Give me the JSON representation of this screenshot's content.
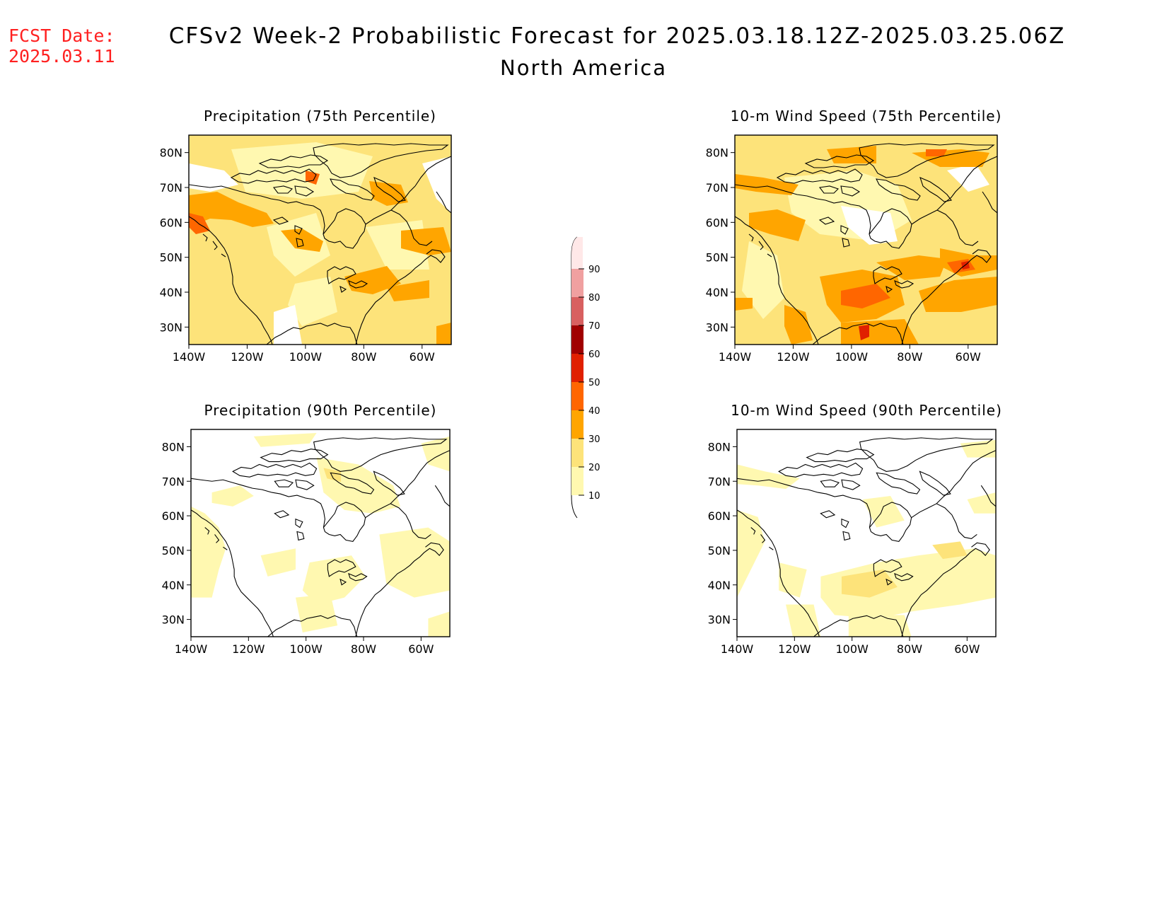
{
  "header": {
    "fcst_label": "FCST Date:",
    "fcst_date": "2025.03.11",
    "title": "CFSv2 Week-2 Probabilistic Forecast for 2025.03.18.12Z-2025.03.25.06Z",
    "subtitle": "North America"
  },
  "colorbar": {
    "levels": [
      "10",
      "20",
      "30",
      "40",
      "50",
      "60",
      "70",
      "80",
      "90"
    ],
    "colors": [
      "#fff8b0",
      "#fde37a",
      "#ffa500",
      "#ff6600",
      "#e02000",
      "#a00000",
      "#d86060",
      "#f0a0a0",
      "#ffe8e8"
    ]
  },
  "axes": {
    "lat_labels": [
      "30N",
      "40N",
      "50N",
      "60N",
      "70N",
      "80N"
    ],
    "lon_labels": [
      "140W",
      "120W",
      "100W",
      "80W",
      "60W"
    ]
  },
  "panels": [
    {
      "id": "precip-75",
      "title": "Precipitation (75th Percentile)"
    },
    {
      "id": "wind-75",
      "title": "10-m Wind Speed (75th Percentile)"
    },
    {
      "id": "precip-90",
      "title": "Precipitation (90th Percentile)"
    },
    {
      "id": "wind-90",
      "title": "10-m Wind Speed (90th Percentile)"
    }
  ]
}
